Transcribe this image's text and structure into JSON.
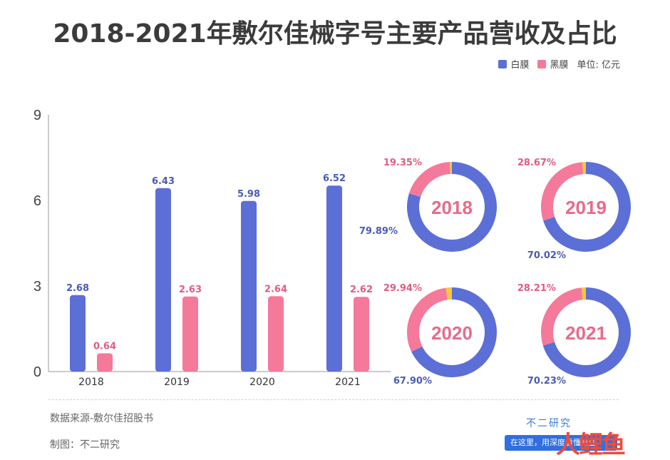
{
  "title": "2018-2021年敷尔佳械字号主要产品营收及占比",
  "legend": {
    "items": [
      {
        "label": "白膜",
        "color": "#5b6fd6"
      },
      {
        "label": "黑膜",
        "color": "#f4799a"
      }
    ],
    "unit": "单位: 亿元"
  },
  "chart_data": [
    {
      "type": "bar",
      "categories": [
        "2018",
        "2019",
        "2020",
        "2021"
      ],
      "series": [
        {
          "name": "白膜",
          "values": [
            2.68,
            6.43,
            5.98,
            6.52
          ],
          "color": "#5b6fd6"
        },
        {
          "name": "黑膜",
          "values": [
            0.64,
            2.63,
            2.64,
            2.62
          ],
          "color": "#f4799a"
        }
      ],
      "y_ticks": [
        "0",
        "3",
        "6",
        "9"
      ],
      "ylim": [
        0,
        9
      ],
      "grid": false
    },
    {
      "type": "pie",
      "donuts": [
        {
          "year": "2018",
          "white": 79.89,
          "black": 19.35,
          "white_label": "79.89%",
          "black_label": "19.35%"
        },
        {
          "year": "2019",
          "white": 70.02,
          "black": 28.67,
          "white_label": "70.02%",
          "black_label": "28.67%"
        },
        {
          "year": "2020",
          "white": 67.9,
          "black": 29.94,
          "white_label": "67.90%",
          "black_label": "29.94%"
        },
        {
          "year": "2021",
          "white": 70.23,
          "black": 28.21,
          "white_label": "70.23%",
          "black_label": "28.21%"
        }
      ],
      "other_color": "#f5c842"
    }
  ],
  "footer": {
    "source": "数据来源-敷尔佳招股书",
    "maker": "制图：不二研究",
    "brand": "不二研究",
    "banner": "在这里，用深度看懂商业",
    "logo": "人鲤鱼"
  }
}
